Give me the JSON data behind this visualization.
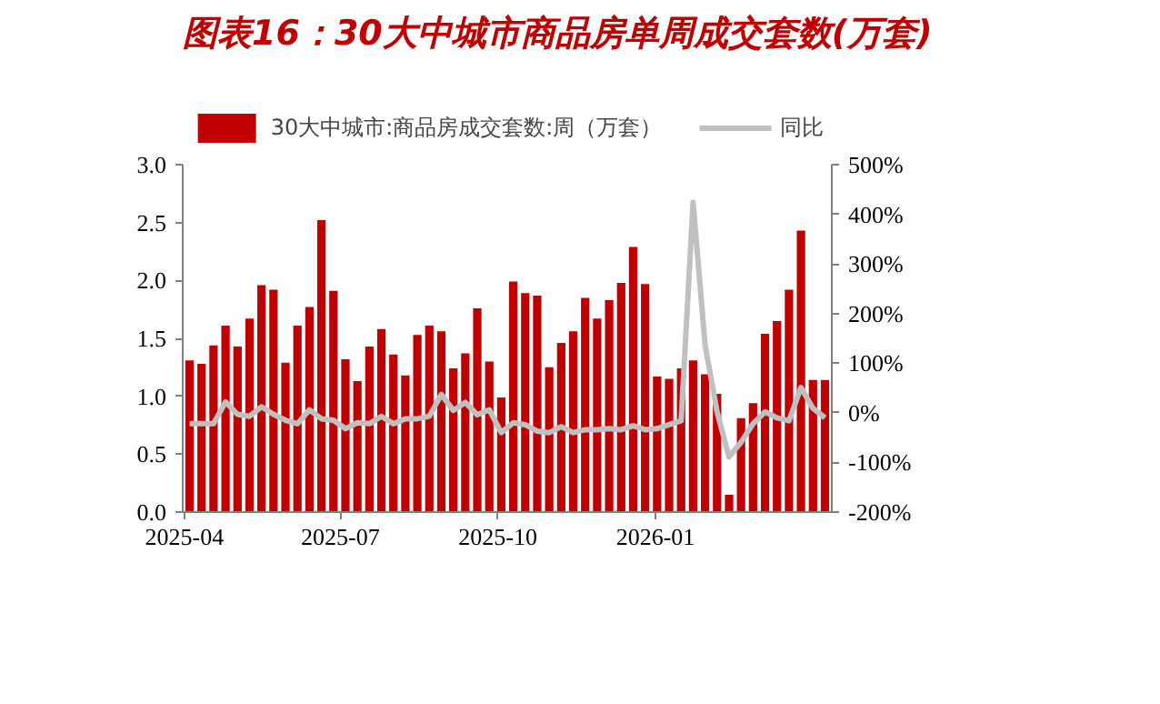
{
  "chart_data": {
    "type": "bar",
    "title": "图表16：30大中城市商品房单周成交套数(万套)",
    "x": [
      "2025-04-04",
      "2025-04-11",
      "2025-04-18",
      "2025-04-25",
      "2025-05-02",
      "2025-05-09",
      "2025-05-16",
      "2025-05-23",
      "2025-05-30",
      "2025-06-06",
      "2025-06-13",
      "2025-06-20",
      "2025-06-27",
      "2025-07-04",
      "2025-07-11",
      "2025-07-18",
      "2025-07-25",
      "2025-08-01",
      "2025-08-08",
      "2025-08-15",
      "2025-08-22",
      "2025-08-29",
      "2025-09-05",
      "2025-09-12",
      "2025-09-19",
      "2025-09-26",
      "2025-10-03",
      "2025-10-10",
      "2025-10-17",
      "2025-10-24",
      "2025-10-31",
      "2025-11-07",
      "2025-11-14",
      "2025-11-21",
      "2025-11-28",
      "2025-12-05",
      "2025-12-12",
      "2025-12-19",
      "2025-12-26",
      "2026-01-02",
      "2026-01-09",
      "2026-01-16",
      "2026-01-23",
      "2026-01-30",
      "2026-02-06",
      "2026-02-13",
      "2026-02-20",
      "2026-02-27",
      "2026-03-06",
      "2026-03-13",
      "2026-03-20",
      "2026-03-27",
      "2026-04-03",
      "2026-04-10"
    ],
    "series": [
      {
        "name": "30大中城市:商品房成交套数:周（万套）",
        "type": "bar",
        "color": "#c00000",
        "values": [
          1.31,
          1.28,
          1.44,
          1.61,
          1.43,
          1.67,
          1.96,
          1.92,
          1.29,
          1.61,
          1.77,
          2.52,
          1.91,
          1.32,
          1.13,
          1.43,
          1.58,
          1.36,
          1.18,
          1.53,
          1.61,
          1.56,
          1.24,
          1.37,
          1.76,
          1.3,
          0.99,
          1.99,
          1.89,
          1.87,
          1.25,
          1.46,
          1.56,
          1.85,
          1.67,
          1.83,
          1.98,
          2.29,
          1.97,
          1.17,
          1.15,
          1.24,
          1.31,
          1.19,
          1.02,
          0.15,
          0.81,
          0.94,
          1.54,
          1.65,
          1.92,
          2.43,
          1.14,
          1.14
        ]
      },
      {
        "name": "同比",
        "type": "line",
        "axis": "y2",
        "color": "#c0c0c0",
        "values": [
          -22,
          -22,
          -22,
          22,
          -3,
          -7,
          12,
          -3,
          -15,
          -22,
          6,
          -12,
          -15,
          -32,
          -20,
          -22,
          -7,
          -22,
          -12,
          -12,
          -7,
          37,
          5,
          21,
          -4,
          6,
          -40,
          -20,
          -24,
          -37,
          -40,
          -28,
          -40,
          -34,
          -34,
          -32,
          -34,
          -26,
          -34,
          -32,
          -24,
          -16,
          424,
          137,
          2,
          -89,
          -59,
          -22,
          2,
          -10,
          -16,
          51,
          9,
          -10
        ]
      }
    ],
    "xlim": [
      "2025-03-31",
      "2026-04-14"
    ],
    "xticks": [
      "2025-04",
      "2025-07",
      "2025-10",
      "2026-01"
    ],
    "ylim": [
      0,
      3
    ],
    "yticks": [
      {
        "value": 0,
        "label": "0.0"
      },
      {
        "value": 0.5,
        "label": "0.5"
      },
      {
        "value": 1,
        "label": "1.0"
      },
      {
        "value": 1.5,
        "label": "1.5"
      },
      {
        "value": 2,
        "label": "2.0"
      },
      {
        "value": 2.5,
        "label": "2.5"
      },
      {
        "value": 3,
        "label": "3.0"
      }
    ],
    "y2lim": [
      -200,
      500
    ],
    "y2ticks": [
      {
        "value": -200,
        "label": "-200%"
      },
      {
        "value": -100,
        "label": "-100%"
      },
      {
        "value": 0,
        "label": "0%"
      },
      {
        "value": 100,
        "label": "100%"
      },
      {
        "value": 200,
        "label": "200%"
      },
      {
        "value": 300,
        "label": "300%"
      },
      {
        "value": 400,
        "label": "400%"
      },
      {
        "value": 500,
        "label": "500%"
      }
    ],
    "legend": "top",
    "grid": false
  }
}
